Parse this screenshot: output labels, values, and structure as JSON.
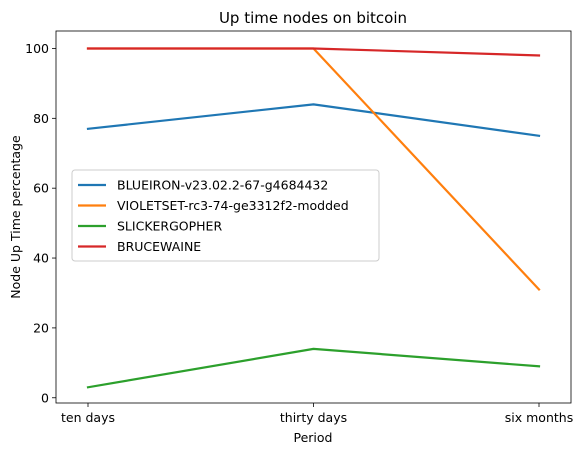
{
  "chart_data": {
    "type": "line",
    "title": "Up time nodes on bitcoin",
    "xlabel": "Period",
    "ylabel": "Node Up Time percentage",
    "categories": [
      "ten days",
      "thirty days",
      "six months"
    ],
    "ylim": [
      -1.5,
      105
    ],
    "yticks": [
      0,
      20,
      40,
      60,
      80,
      100
    ],
    "grid": false,
    "legend_position": "center-left",
    "series": [
      {
        "name": "BLUEIRON-v23.02.2-67-g4684432",
        "color": "#1f77b4",
        "values": [
          77,
          84,
          75
        ]
      },
      {
        "name": "VIOLETSET-rc3-74-ge3312f2-modded",
        "color": "#ff7f0e",
        "values": [
          100,
          100,
          31
        ]
      },
      {
        "name": "SLICKERGOPHER",
        "color": "#2ca02c",
        "values": [
          3,
          14,
          9
        ]
      },
      {
        "name": "BRUCEWAINE",
        "color": "#d62728",
        "values": [
          100,
          100,
          98
        ]
      }
    ]
  }
}
